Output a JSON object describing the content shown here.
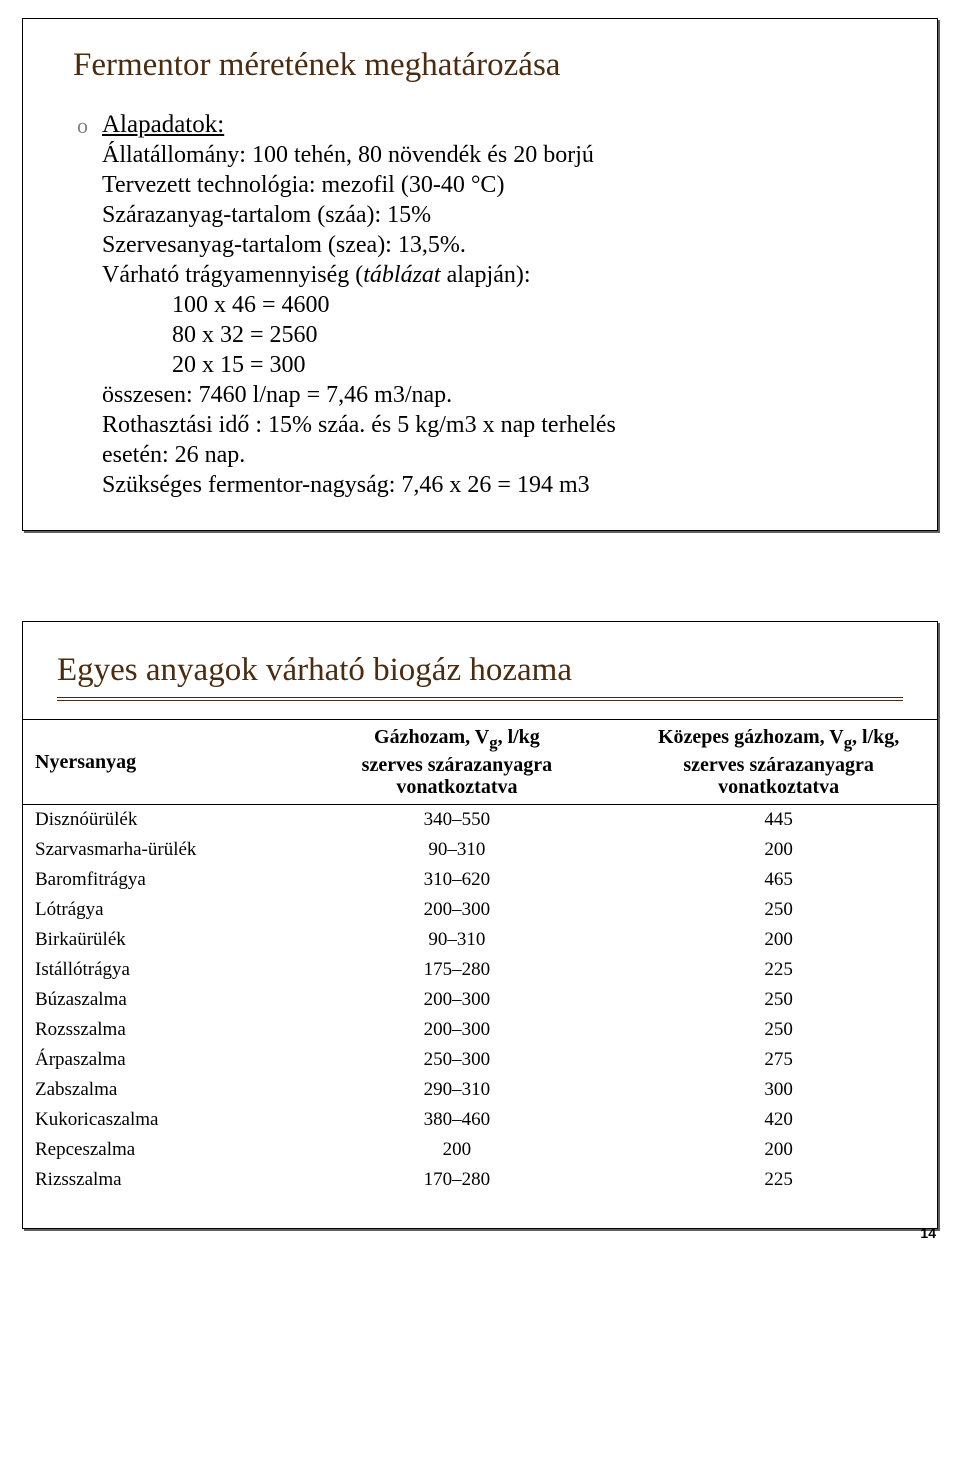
{
  "colors": {
    "title": "#4a2c12",
    "bullet": "#808080",
    "text": "#000000",
    "border": "#000000",
    "shadow": "#606060",
    "bg": "#ffffff"
  },
  "typography": {
    "title_fontsize_pt": 25,
    "body_fontsize_pt": 18,
    "table_header_fontsize_pt": 15,
    "table_body_fontsize_pt": 14,
    "font_family": "Times New Roman"
  },
  "page_number": "14",
  "slide1": {
    "title": "Fermentor méretének meghatározása",
    "bullet_marker": "o",
    "subtitle": "Alapadatok:",
    "line1": "Állatállomány: 100 tehén, 80 növendék és 20 borjú",
    "line2": "Tervezett technológia: mezofil (30-40 °C)",
    "line3": "Szárazanyag-tartalom (száa): 15%",
    "line4": "Szervesanyag-tartalom (szea): 13,5%.",
    "line5_prefix": "Várható trágyamennyiség (",
    "line5_italic": "táblázat",
    "line5_suffix": " alapján):",
    "calc1": "100 x 46 = 4600",
    "calc2": "80 x 32 = 2560",
    "calc3": "20 x 15 = 300",
    "line6": "összesen: 7460 l/nap = 7,46 m3/nap.",
    "line7": "Rothasztási idő : 15% száa. és 5 kg/m3 x nap terhelés",
    "line8": "esetén: 26 nap.",
    "line9": "Szükséges fermentor-nagyság: 7,46 x 26 = 194 m3"
  },
  "slide2": {
    "title": "Egyes anyagok várható biogáz hozama",
    "table": {
      "columns": [
        "Nyersanyag",
        "Gázhozam, V_g, l/kg szerves szárazanyagra vonatkoztatva",
        "Közepes gázhozam, V_g, l/kg, szerves szárazanyagra vonatkoztatva"
      ],
      "col1_header_l1": "Nyersanyag",
      "col2_header_l1": "Gázhozam, V",
      "col2_header_sub": "g",
      "col2_header_l1b": ", l/kg",
      "col2_header_l2": "szerves szárazanyagra",
      "col2_header_l3": "vonatkoztatva",
      "col3_header_l1": "Közepes gázhozam, V",
      "col3_header_sub": "g",
      "col3_header_l1b": ", l/kg,",
      "col3_header_l2": "szerves szárazanyagra",
      "col3_header_l3": "vonatkoztatva",
      "rows": [
        {
          "name": "Disznóürülék",
          "range": "340–550",
          "mid": "445"
        },
        {
          "name": "Szarvasmarha-ürülék",
          "range": "90–310",
          "mid": "200"
        },
        {
          "name": "Baromfitrágya",
          "range": "310–620",
          "mid": "465"
        },
        {
          "name": "Lótrágya",
          "range": "200–300",
          "mid": "250"
        },
        {
          "name": "Birkaürülék",
          "range": "90–310",
          "mid": "200"
        },
        {
          "name": "Istállótrágya",
          "range": "175–280",
          "mid": "225"
        },
        {
          "name": "Búzaszalma",
          "range": "200–300",
          "mid": "250"
        },
        {
          "name": "Rozsszalma",
          "range": "200–300",
          "mid": "250"
        },
        {
          "name": "Árpaszalma",
          "range": "250–300",
          "mid": "275"
        },
        {
          "name": "Zabszalma",
          "range": "290–310",
          "mid": "300"
        },
        {
          "name": "Kukoricaszalma",
          "range": "380–460",
          "mid": "420"
        },
        {
          "name": "Repceszalma",
          "range": "200",
          "mid": "200"
        },
        {
          "name": "Rizsszalma",
          "range": "170–280",
          "mid": "225"
        }
      ]
    }
  }
}
